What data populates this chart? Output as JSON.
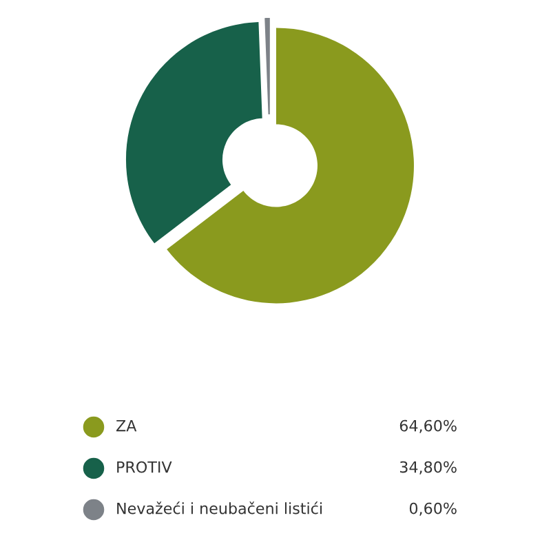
{
  "chart_data": {
    "type": "donut",
    "categories": [
      "ZA",
      "PROTIV",
      "Nevažeći i neubačeni listići"
    ],
    "values": [
      64.6,
      34.8,
      0.6
    ],
    "colors": [
      "#8a9a1e",
      "#17614a",
      "#7d8288"
    ],
    "value_labels": [
      "64,60%",
      "34,80%",
      "0,60%"
    ],
    "legend": "bottom"
  }
}
